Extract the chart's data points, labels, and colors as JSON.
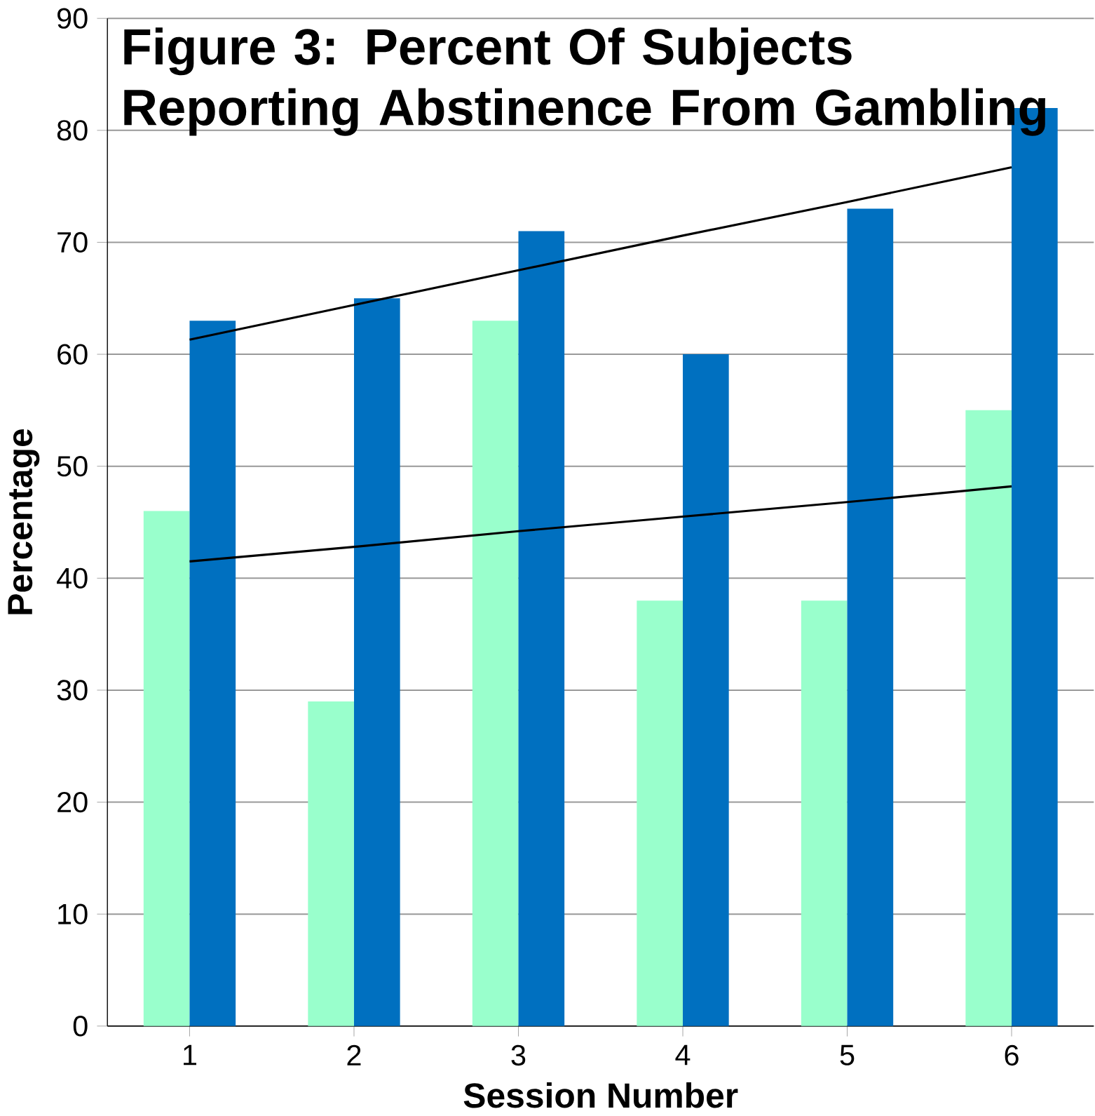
{
  "chart_data": {
    "type": "bar",
    "title": "Figure 3:  Percent Of Subjects Reporting Abstinence From Gambling",
    "xlabel": "Session Number",
    "ylabel": "Percentage",
    "x": [
      1,
      2,
      3,
      4,
      5,
      6
    ],
    "xlim": [
      0.5,
      6.5
    ],
    "xticks": [
      1,
      2,
      3,
      4,
      5,
      6
    ],
    "ylim": [
      0,
      90
    ],
    "yticks": [
      0,
      10,
      20,
      30,
      40,
      50,
      60,
      70,
      80,
      90
    ],
    "grid": "y",
    "series": [
      {
        "color": "#99ffcc",
        "values": [
          46,
          29,
          63,
          38,
          38,
          55
        ]
      },
      {
        "color": "#0070c0",
        "values": [
          63,
          65,
          71,
          60,
          73,
          82
        ]
      },
      {
        "type": "line",
        "color": "#000000",
        "values": [
          41.5,
          42.8,
          44.2,
          45.5,
          46.8,
          48.2
        ]
      },
      {
        "type": "line",
        "color": "#000000",
        "values": [
          61.3,
          64.4,
          67.5,
          70.6,
          73.6,
          76.7
        ]
      }
    ]
  }
}
